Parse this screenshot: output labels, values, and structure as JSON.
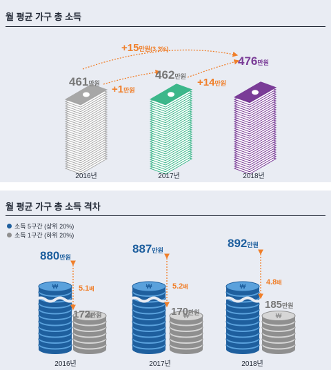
{
  "panel1": {
    "title": "월 평균 가구 총 소득",
    "years": [
      "2016년",
      "2017년",
      "2018년"
    ],
    "values": [
      "461",
      "462",
      "476"
    ],
    "unit": "만원",
    "diff1": {
      "value": "+1",
      "unit": "만원"
    },
    "diff2": {
      "value": "+14",
      "unit": "만원"
    },
    "diff_total": {
      "value": "+15",
      "unit": "만원",
      "pct": "(3.3%)"
    }
  },
  "panel2": {
    "title": "월 평균 가구 총 소득 격차",
    "legend": [
      {
        "label": "소득 5구간 (상위 20%)",
        "color": "#1e5f9e"
      },
      {
        "label": "소득 1구간 (하위 20%)",
        "color": "#8f8f8f"
      }
    ],
    "years": [
      "2016년",
      "2017년",
      "2018년"
    ],
    "top_values": [
      "880",
      "887",
      "892"
    ],
    "bottom_values": [
      "172",
      "170",
      "185"
    ],
    "ratios": [
      "5.1",
      "5.2",
      "4.8"
    ],
    "ratio_unit": "배",
    "unit": "만원"
  },
  "chart_data": [
    {
      "type": "bar",
      "title": "월 평균 가구 총 소득",
      "categories": [
        "2016년",
        "2017년",
        "2018년"
      ],
      "values": [
        461,
        462,
        476
      ],
      "unit": "만원",
      "annotations": [
        "+1만원",
        "+14만원",
        "+15만원(3.3%)"
      ],
      "colors": [
        "#a7a7a7",
        "#3cb78a",
        "#7a3c97"
      ]
    },
    {
      "type": "bar",
      "title": "월 평균 가구 총 소득 격차",
      "categories": [
        "2016년",
        "2017년",
        "2018년"
      ],
      "series": [
        {
          "name": "소득 5구간 (상위 20%)",
          "values": [
            880,
            887,
            892
          ]
        },
        {
          "name": "소득 1구간 (하위 20%)",
          "values": [
            172,
            170,
            185
          ]
        }
      ],
      "ratios": [
        5.1,
        5.2,
        4.8
      ],
      "unit": "만원",
      "accent": "#f07f2a"
    }
  ]
}
